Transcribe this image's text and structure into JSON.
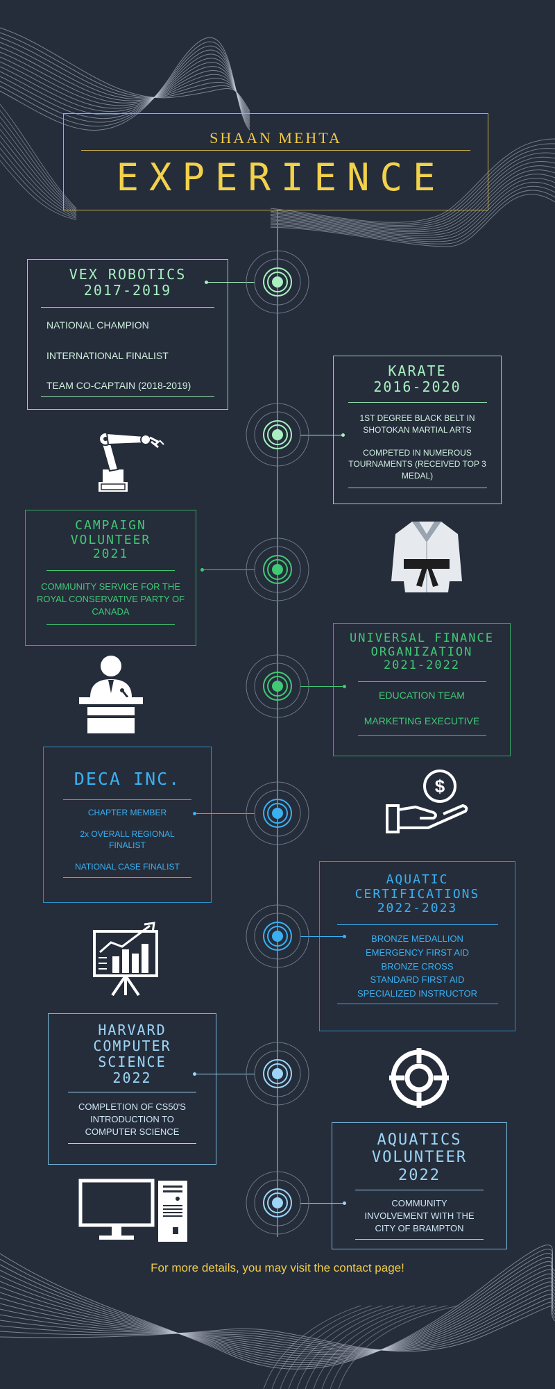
{
  "header": {
    "name": "SHAAN MEHTA",
    "title": "EXPERIENCE"
  },
  "colors": {
    "background": "#252d3b",
    "gold": "#f2cc44",
    "mint": "#a8f0c0",
    "green": "#41c874",
    "blue": "#3ab0f2",
    "lightblue": "#9cd5f7"
  },
  "entries": [
    {
      "title": "VEX ROBOTICS\n2017-2019",
      "items": [
        "NATIONAL CHAMPION",
        "INTERNATIONAL FINALIST",
        "TEAM CO-CAPTAIN (2018-2019)"
      ],
      "icon": "robot-arm-icon"
    },
    {
      "title": "KARATE\n2016-2020",
      "items": [
        "1ST DEGREE BLACK BELT IN\nSHOTOKAN MARTIAL ARTS",
        "COMPETED IN NUMEROUS\nTOURNAMENTS (RECEIVED TOP 3\nMEDAL)"
      ],
      "icon": "karate-gi-icon"
    },
    {
      "title": "CAMPAIGN\nVOLUNTEER\n2021",
      "items": [
        "COMMUNITY SERVICE FOR THE\nROYAL CONSERVATIVE PARTY OF\nCANADA"
      ],
      "icon": "speaker-podium-icon"
    },
    {
      "title": "UNIVERSAL FINANCE\nORGANIZATION\n2021-2022",
      "items": [
        "EDUCATION TEAM",
        "MARKETING EXECUTIVE"
      ],
      "icon": "money-hand-icon"
    },
    {
      "title": "DECA INC.",
      "items": [
        "CHAPTER MEMBER",
        "2x OVERALL REGIONAL\nFINALIST",
        "NATIONAL CASE FINALIST"
      ],
      "icon": "presentation-chart-icon"
    },
    {
      "title": "AQUATIC\nCERTIFICATIONS\n2022-2023",
      "items": [
        "BRONZE MEDALLION\nEMERGENCY FIRST AID\nBRONZE CROSS\nSTANDARD FIRST AID\nSPECIALIZED INSTRUCTOR"
      ],
      "icon": "lifebuoy-icon"
    },
    {
      "title": "HARVARD\nCOMPUTER\nSCIENCE\n2022",
      "items": [
        "COMPLETION OF CS50'S\nINTRODUCTION TO\nCOMPUTER SCIENCE"
      ],
      "icon": "desktop-computer-icon"
    },
    {
      "title": "AQUATICS\nVOLUNTEER\n2022",
      "items": [
        "COMMUNITY\nINVOLVEMENT WITH THE\nCITY OF BRAMPTON"
      ],
      "icon": ""
    }
  ],
  "footer": "For more details, you may visit the contact page!"
}
